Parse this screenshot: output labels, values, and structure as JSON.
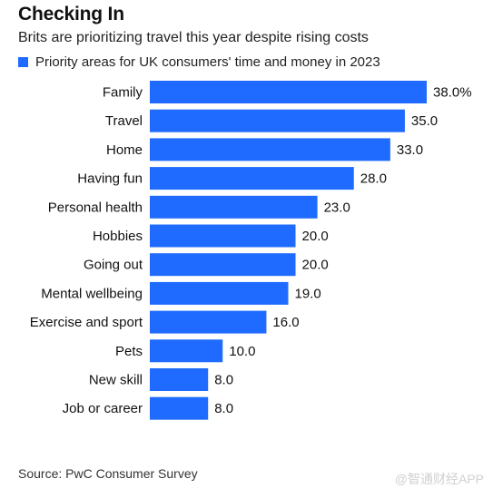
{
  "header": {
    "title": "Checking In",
    "subtitle": "Brits are prioritizing travel this year despite rising costs"
  },
  "colors": {
    "bar": "#1f6bff",
    "text": "#111111"
  },
  "chart_data": {
    "type": "bar",
    "orientation": "horizontal",
    "title": "Checking In",
    "subtitle": "Brits are prioritizing travel this year despite rising costs",
    "legend": {
      "position": "top-left",
      "entries": [
        "Priority areas for UK consumers' time and money in 2023"
      ]
    },
    "series": [
      {
        "name": "Priority areas for UK consumers' time and money in 2023",
        "values": [
          38.0,
          35.0,
          33.0,
          28.0,
          23.0,
          20.0,
          20.0,
          19.0,
          16.0,
          10.0,
          8.0,
          8.0
        ]
      }
    ],
    "categories": [
      "Family",
      "Travel",
      "Home",
      "Having fun",
      "Personal health",
      "Hobbies",
      "Going out",
      "Mental wellbeing",
      "Exercise and sport",
      "Pets",
      "New skill",
      "Job or career"
    ],
    "value_labels": [
      "38.0%",
      "35.0",
      "33.0",
      "28.0",
      "23.0",
      "20.0",
      "20.0",
      "19.0",
      "16.0",
      "10.0",
      "8.0",
      "8.0"
    ],
    "xlim": [
      0,
      38.0
    ],
    "grid": false,
    "xlabel": "",
    "ylabel": ""
  },
  "footer": {
    "source": "Source: PwC Consumer Survey",
    "watermark": "@智通财经APP"
  }
}
